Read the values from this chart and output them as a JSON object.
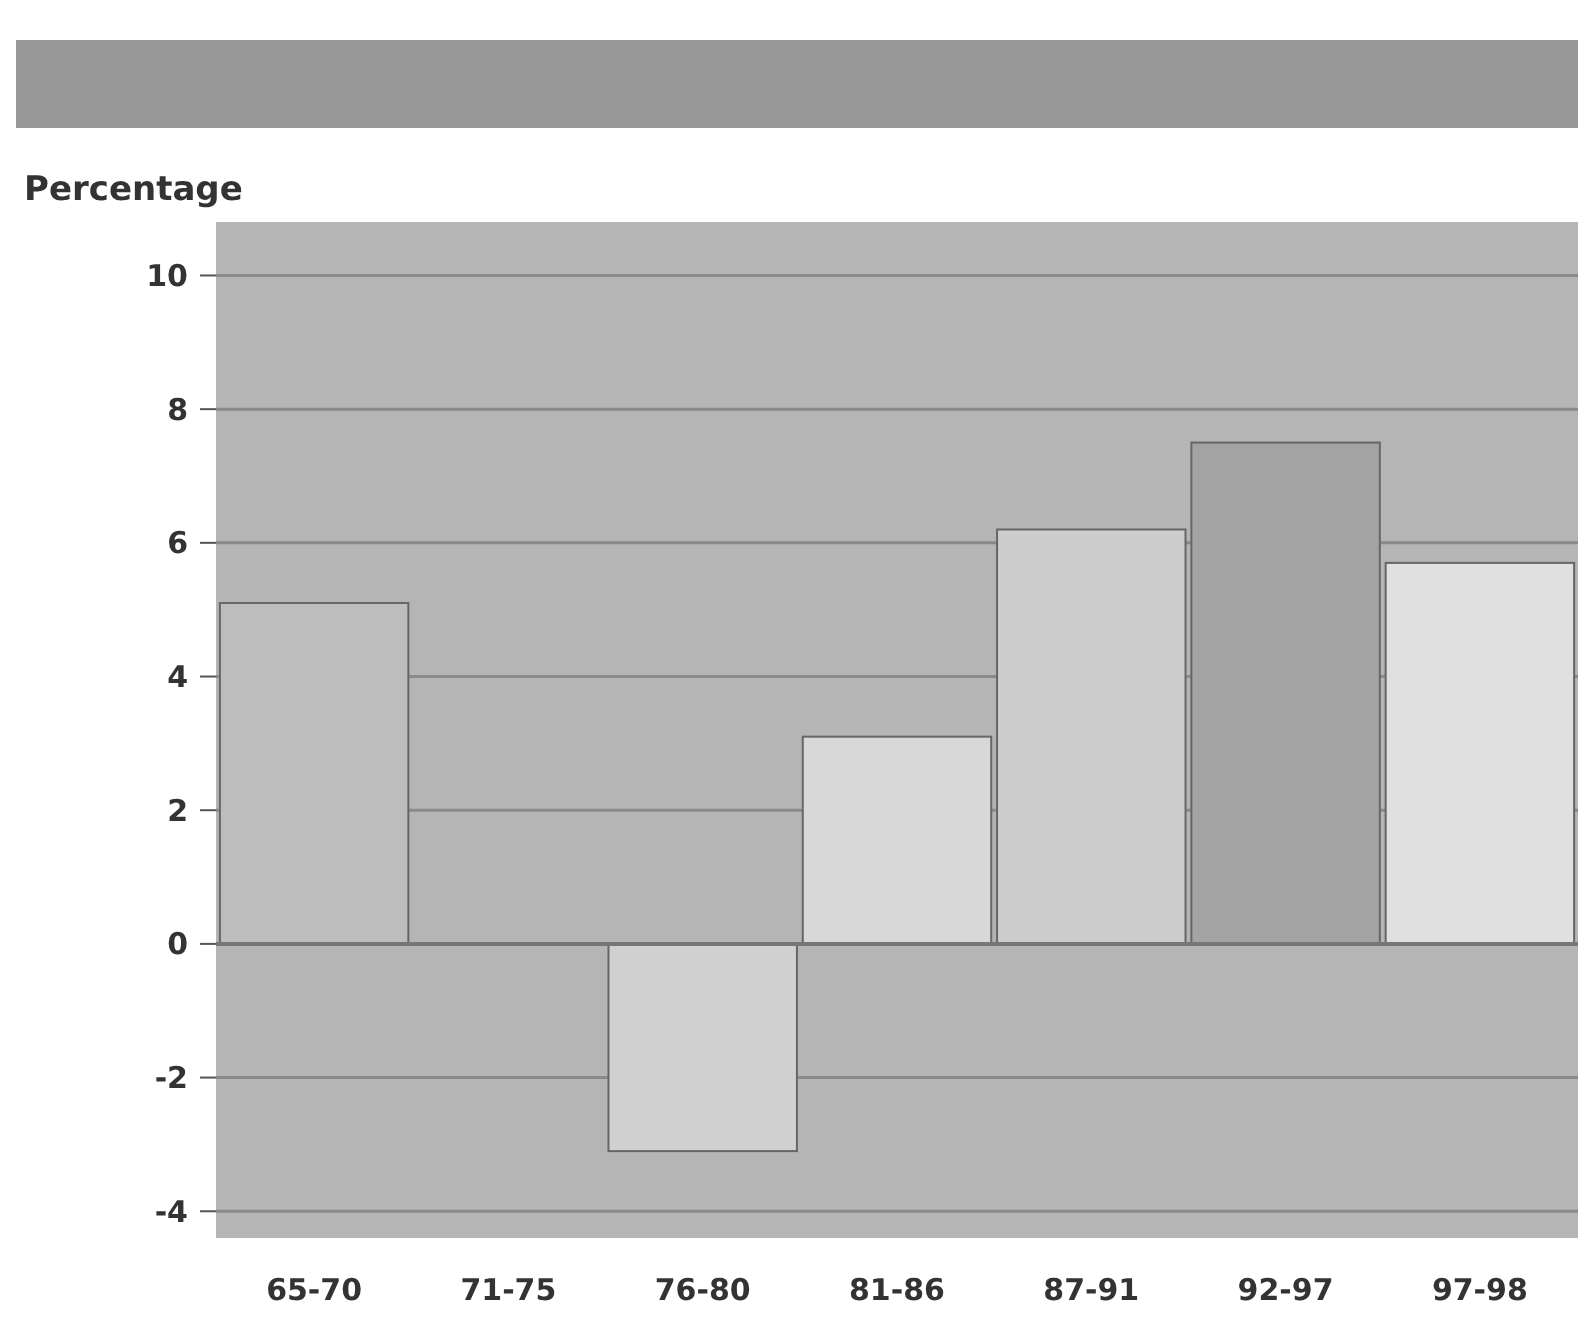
{
  "chart_data": {
    "type": "bar",
    "ylabel": "Percentage",
    "categories": [
      "65-70",
      "71-75",
      "76-80",
      "81-86",
      "87-91",
      "92-97",
      "97-98"
    ],
    "values": [
      5.1,
      0,
      -3.1,
      3.1,
      6.2,
      7.5,
      5.7
    ],
    "colors": [
      "#bdbdbd",
      "#c4c4c4",
      "#d0d0d0",
      "#d8d8d8",
      "#cdcdcd",
      "#a3a3a3",
      "#e0e0e0"
    ],
    "ylim": [
      -4.4,
      10.8
    ],
    "yticks": [
      -4,
      -2,
      0,
      2,
      4,
      6,
      8,
      10
    ],
    "grid": "y"
  }
}
